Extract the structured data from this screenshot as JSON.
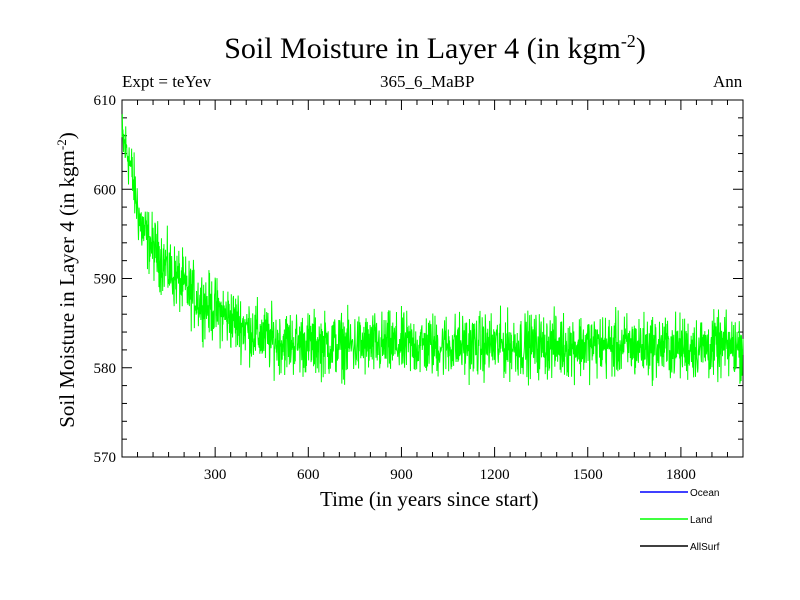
{
  "title": "Soil Moisture in Layer 4 (in kgm",
  "title_sup": "-2",
  "title_close": ")",
  "left_label": "Expt = teYev",
  "subtitle": "365_6_MaBP",
  "right_label": "Ann",
  "chart_data": {
    "type": "line",
    "xlabel": "Time (in years since start)",
    "ylabel": "Soil Moisture in Layer 4 (in kgm",
    "ylabel_sup": "-2",
    "ylabel_close": ")",
    "xlim": [
      0,
      2000
    ],
    "ylim": [
      570,
      610
    ],
    "xticks": [
      300,
      600,
      900,
      1200,
      1500,
      1800
    ],
    "yticks": [
      570,
      580,
      590,
      600,
      610
    ],
    "grid": false,
    "legend_position": "bottom-right",
    "series": [
      {
        "name": "Ocean",
        "color": "#0000ff",
        "values": []
      },
      {
        "name": "Land",
        "color": "#00ff00",
        "x": [
          0,
          20,
          40,
          60,
          80,
          100,
          120,
          140,
          160,
          180,
          200,
          250,
          300,
          350,
          400,
          450,
          500,
          550,
          600,
          650,
          700,
          750,
          800,
          850,
          900,
          950,
          1000,
          1050,
          1100,
          1150,
          1200,
          1250,
          1300,
          1350,
          1400,
          1450,
          1500,
          1550,
          1600,
          1650,
          1700,
          1750,
          1800,
          1850,
          1900,
          1950,
          2000
        ],
        "values": [
          605.5,
          604,
          600,
          596,
          594.5,
          593.5,
          592.5,
          591.5,
          590.5,
          590,
          589,
          587.5,
          586.5,
          585.5,
          584.5,
          583.5,
          583,
          582.8,
          582.7,
          582.6,
          582.5,
          582.5,
          582.5,
          582.5,
          582.5,
          582.5,
          582.5,
          582.5,
          582.5,
          582.5,
          582.5,
          582.5,
          582.5,
          582.5,
          582.5,
          582.5,
          582.5,
          582.5,
          582.4,
          582.4,
          582.4,
          582.3,
          582.3,
          582.3,
          582.3,
          582.3,
          582.3
        ],
        "noise_amplitude": 2.2
      },
      {
        "name": "AllSurf",
        "color": "#000000",
        "values": []
      }
    ]
  }
}
